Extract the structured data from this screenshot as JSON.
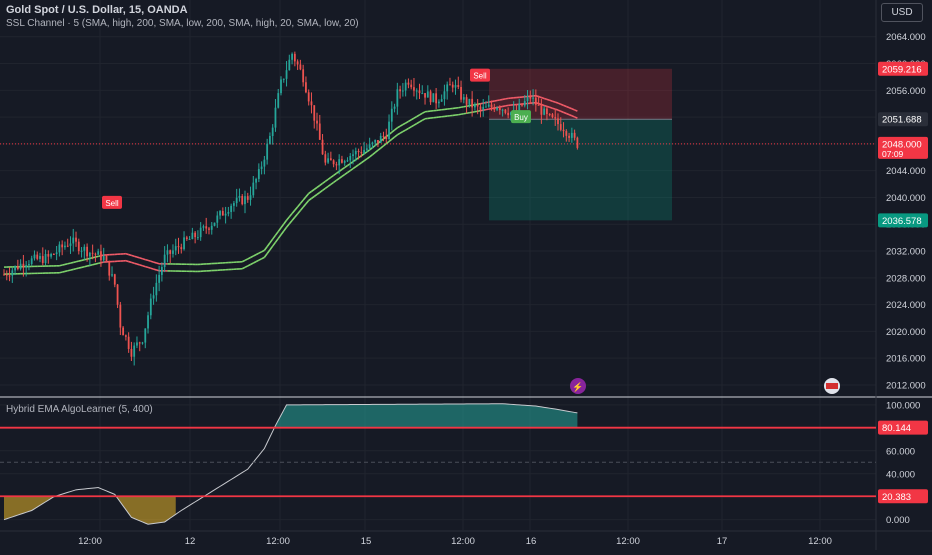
{
  "header": {
    "title": "Gold Spot / U.S. Dollar, 15, OANDA",
    "indicator": "SSL Channel · 5 (SMA, high, 200, SMA, low, 200, SMA, high, 20, SMA, low, 20)",
    "oscillator": "Hybrid EMA AlgoLearner (5, 400)",
    "currency_button": "USD"
  },
  "colors": {
    "background": "#161a25",
    "grid": "#20242e",
    "up": "#26a69a",
    "down": "#ef5350",
    "ssl_green": "#7ed36c",
    "ssl_red": "#f05b68",
    "hline": "#f23645",
    "text": "#d1d4dc"
  },
  "chart_data": [
    {
      "type": "candlestick",
      "y_ticks": [
        "2064.000",
        "2060.000",
        "2056.000",
        "2052.000",
        "2048.000",
        "2044.000",
        "2040.000",
        "2036.000",
        "2032.000",
        "2028.000",
        "2024.000",
        "2020.000",
        "2016.000",
        "2012.000"
      ],
      "ylim": [
        2010.5,
        2066.5
      ],
      "x_ticks": [
        "12:00",
        "12",
        "12:00",
        "15",
        "12:00",
        "16",
        "12:00",
        "17",
        "12:00"
      ],
      "price_tags": [
        {
          "value": "2059.216",
          "price": 2059.216,
          "style": "red"
        },
        {
          "value": "2051.688",
          "price": 2051.688,
          "style": "gray"
        },
        {
          "value": "2048.000",
          "price": 2048.0,
          "style": "red",
          "sub": "07:09"
        },
        {
          "value": "2036.578",
          "price": 2036.578,
          "style": "green"
        }
      ],
      "signals": [
        {
          "label": "Sell",
          "price": 2039.2,
          "kind": "sell"
        },
        {
          "label": "Sell",
          "price": 2058.2,
          "kind": "sell"
        },
        {
          "label": "Buy",
          "price": 2052.0,
          "kind": "buy"
        }
      ],
      "position_box": {
        "entry": 2051.688,
        "stop": 2059.216,
        "target": 2036.578
      },
      "current_price": 2048.0,
      "ohlc_anchors": [
        {
          "bar": 0,
          "price": 2028.5
        },
        {
          "bar": 8,
          "price": 2030.5
        },
        {
          "bar": 16,
          "price": 2031.0
        },
        {
          "bar": 24,
          "price": 2033.5
        },
        {
          "bar": 30,
          "price": 2032.0
        },
        {
          "bar": 36,
          "price": 2031.0
        },
        {
          "bar": 40,
          "price": 2027.0
        },
        {
          "bar": 42,
          "price": 2021.0
        },
        {
          "bar": 46,
          "price": 2017.0
        },
        {
          "bar": 50,
          "price": 2019.0
        },
        {
          "bar": 54,
          "price": 2026.0
        },
        {
          "bar": 58,
          "price": 2031.0
        },
        {
          "bar": 64,
          "price": 2033.0
        },
        {
          "bar": 70,
          "price": 2034.5
        },
        {
          "bar": 76,
          "price": 2036.5
        },
        {
          "bar": 82,
          "price": 2039.0
        },
        {
          "bar": 88,
          "price": 2040.0
        },
        {
          "bar": 92,
          "price": 2043.5
        },
        {
          "bar": 96,
          "price": 2049.0
        },
        {
          "bar": 100,
          "price": 2057.0
        },
        {
          "bar": 104,
          "price": 2061.5
        },
        {
          "bar": 108,
          "price": 2058.0
        },
        {
          "bar": 112,
          "price": 2052.0
        },
        {
          "bar": 116,
          "price": 2045.0
        },
        {
          "bar": 120,
          "price": 2045.5
        },
        {
          "bar": 126,
          "price": 2046.5
        },
        {
          "bar": 132,
          "price": 2047.5
        },
        {
          "bar": 138,
          "price": 2049.5
        },
        {
          "bar": 142,
          "price": 2055.5
        },
        {
          "bar": 146,
          "price": 2057.5
        },
        {
          "bar": 150,
          "price": 2056.0
        },
        {
          "bar": 156,
          "price": 2054.5
        },
        {
          "bar": 162,
          "price": 2057.0
        },
        {
          "bar": 166,
          "price": 2054.5
        },
        {
          "bar": 172,
          "price": 2053.0
        },
        {
          "bar": 178,
          "price": 2053.8
        },
        {
          "bar": 184,
          "price": 2052.5
        },
        {
          "bar": 190,
          "price": 2055.0
        },
        {
          "bar": 196,
          "price": 2052.0
        },
        {
          "bar": 202,
          "price": 2050.5
        },
        {
          "bar": 207,
          "price": 2048.0
        }
      ],
      "ssl_channel": [
        {
          "bar": 0,
          "price": 2029.0
        },
        {
          "bar": 20,
          "price": 2029.2
        },
        {
          "bar": 36,
          "price": 2030.8
        },
        {
          "bar": 44,
          "price": 2031.0
        },
        {
          "bar": 56,
          "price": 2029.5
        },
        {
          "bar": 70,
          "price": 2029.4
        },
        {
          "bar": 86,
          "price": 2029.8
        },
        {
          "bar": 94,
          "price": 2031.5
        },
        {
          "bar": 102,
          "price": 2036.0
        },
        {
          "bar": 110,
          "price": 2040.0
        },
        {
          "bar": 120,
          "price": 2043.0
        },
        {
          "bar": 132,
          "price": 2046.5
        },
        {
          "bar": 142,
          "price": 2049.8
        },
        {
          "bar": 152,
          "price": 2052.2
        },
        {
          "bar": 164,
          "price": 2052.8
        },
        {
          "bar": 172,
          "price": 2053.4
        },
        {
          "bar": 182,
          "price": 2054.2
        },
        {
          "bar": 192,
          "price": 2054.6
        },
        {
          "bar": 200,
          "price": 2053.5
        },
        {
          "bar": 207,
          "price": 2052.3
        }
      ],
      "ssl_red_bars": [
        [
          35,
          58
        ],
        [
          172,
          207
        ]
      ]
    },
    {
      "type": "line",
      "series": [
        {
          "values": [
            {
              "bar": 0,
              "value": 0
            },
            {
              "bar": 10,
              "value": 8
            },
            {
              "bar": 18,
              "value": 20
            },
            {
              "bar": 26,
              "value": 26
            },
            {
              "bar": 34,
              "value": 28
            },
            {
              "bar": 40,
              "value": 22
            },
            {
              "bar": 46,
              "value": 2
            },
            {
              "bar": 52,
              "value": -4
            },
            {
              "bar": 58,
              "value": -2
            },
            {
              "bar": 64,
              "value": 8
            },
            {
              "bar": 72,
              "value": 20
            },
            {
              "bar": 80,
              "value": 32
            },
            {
              "bar": 88,
              "value": 44
            },
            {
              "bar": 94,
              "value": 62
            },
            {
              "bar": 98,
              "value": 82
            },
            {
              "bar": 102,
              "value": 100
            },
            {
              "bar": 180,
              "value": 101
            },
            {
              "bar": 192,
              "value": 99
            },
            {
              "bar": 200,
              "value": 96
            },
            {
              "bar": 207,
              "value": 93
            }
          ]
        }
      ],
      "y_ticks": [
        "100.000",
        "80.000",
        "60.000",
        "40.000",
        "20.000",
        "0.000"
      ],
      "ylim": [
        -9,
        106
      ],
      "hlines": [
        {
          "value": 80.144,
          "label": "80.144"
        },
        {
          "value": 20.383,
          "label": "20.383"
        }
      ],
      "dashed_levels": [
        50
      ]
    }
  ]
}
